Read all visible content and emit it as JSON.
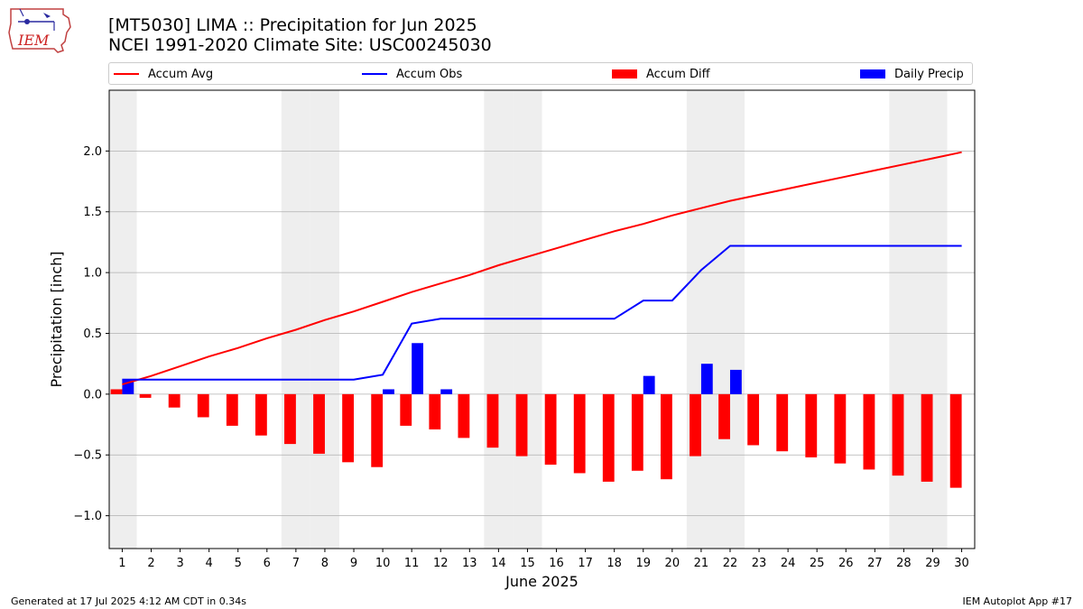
{
  "header": {
    "logo_text": "IEM",
    "title_line1": "[MT5030] LIMA :: Precipitation for Jun 2025",
    "title_line2": "NCEI 1991-2020 Climate Site: USC00245030"
  },
  "legend": {
    "accum_avg": "Accum Avg",
    "accum_obs": "Accum Obs",
    "accum_diff": "Accum Diff",
    "daily_precip": "Daily Precip"
  },
  "footer": {
    "generated": "Generated at 17 Jul 2025 4:12 AM CDT in 0.34s",
    "app": "IEM Autoplot App #17"
  },
  "colors": {
    "accum_avg": "#ff0000",
    "accum_obs": "#0000ff",
    "accum_diff": "#ff0000",
    "daily_precip": "#0000ff",
    "weekend_shade": "#eeeeee",
    "grid": "#b0b0b0"
  },
  "chart_data": {
    "type": "bar",
    "xlabel": "June 2025",
    "ylabel": "Precipitation [inch]",
    "ylim": [
      -1.27,
      2.5
    ],
    "yticks": [
      -1.0,
      -0.5,
      0.0,
      0.5,
      1.0,
      1.5,
      2.0
    ],
    "ytick_labels": [
      "−1.0",
      "−0.5",
      "0.0",
      "0.5",
      "1.0",
      "1.5",
      "2.0"
    ],
    "grid": "horizontal",
    "legend_position": "top",
    "weekend_days": [
      1,
      7,
      8,
      14,
      15,
      21,
      22,
      28,
      29
    ],
    "days": [
      1,
      2,
      3,
      4,
      5,
      6,
      7,
      8,
      9,
      10,
      11,
      12,
      13,
      14,
      15,
      16,
      17,
      18,
      19,
      20,
      21,
      22,
      23,
      24,
      25,
      26,
      27,
      28,
      29,
      30
    ],
    "series": [
      {
        "name": "Accum Avg",
        "kind": "line",
        "values": [
          0.08,
          0.15,
          0.23,
          0.31,
          0.38,
          0.46,
          0.53,
          0.61,
          0.68,
          0.76,
          0.84,
          0.91,
          0.98,
          1.06,
          1.13,
          1.2,
          1.27,
          1.34,
          1.4,
          1.47,
          1.53,
          1.59,
          1.64,
          1.69,
          1.74,
          1.79,
          1.84,
          1.89,
          1.94,
          1.99
        ]
      },
      {
        "name": "Accum Obs",
        "kind": "line",
        "values": [
          0.12,
          0.12,
          0.12,
          0.12,
          0.12,
          0.12,
          0.12,
          0.12,
          0.12,
          0.16,
          0.58,
          0.62,
          0.62,
          0.62,
          0.62,
          0.62,
          0.62,
          0.62,
          0.77,
          0.77,
          1.02,
          1.22,
          1.22,
          1.22,
          1.22,
          1.22,
          1.22,
          1.22,
          1.22,
          1.22
        ]
      },
      {
        "name": "Accum Diff",
        "kind": "bar",
        "values": [
          0.04,
          -0.03,
          -0.11,
          -0.19,
          -0.26,
          -0.34,
          -0.41,
          -0.49,
          -0.56,
          -0.6,
          -0.26,
          -0.29,
          -0.36,
          -0.44,
          -0.51,
          -0.58,
          -0.65,
          -0.72,
          -0.63,
          -0.7,
          -0.51,
          -0.37,
          -0.42,
          -0.47,
          -0.52,
          -0.57,
          -0.62,
          -0.67,
          -0.72,
          -0.77
        ]
      },
      {
        "name": "Daily Precip",
        "kind": "bar",
        "values": [
          0.12,
          0,
          0,
          0,
          0,
          0,
          0,
          0,
          0,
          0.04,
          0.42,
          0.04,
          0,
          0,
          0,
          0,
          0,
          0,
          0.15,
          0,
          0.25,
          0.2,
          0,
          0,
          0,
          0,
          0,
          0,
          0,
          0
        ]
      }
    ]
  }
}
